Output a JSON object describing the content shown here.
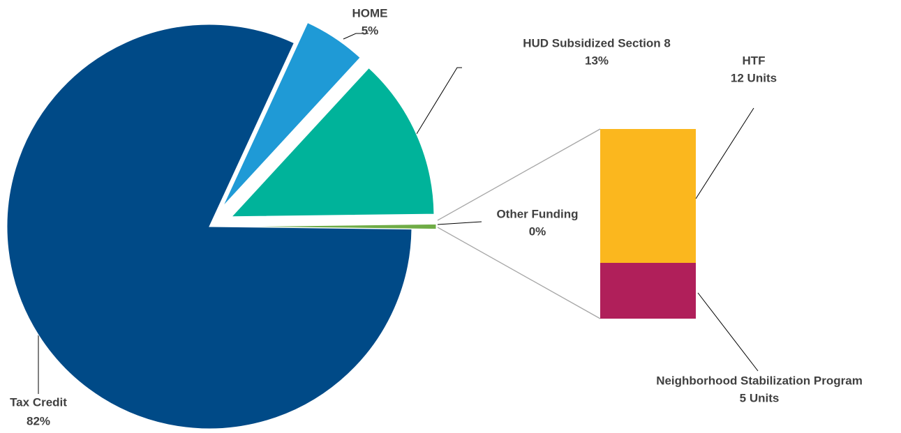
{
  "chart_data": {
    "type": "pie",
    "categories": [
      "Tax Credit",
      "HOME",
      "HUD Subsidized Section 8",
      "Other Funding"
    ],
    "values": [
      82,
      5,
      13,
      0.4
    ],
    "value_labels": [
      "82%",
      "5%",
      "13%",
      "0%"
    ],
    "colors": [
      "#004a87",
      "#1f9ad6",
      "#00b39a",
      "#6fac46"
    ],
    "breakdown": {
      "type": "bar",
      "categories": [
        "HTF",
        "Neighborhood Stabilization Program"
      ],
      "values": [
        12,
        5
      ],
      "value_labels": [
        "12 Units",
        "5 Units"
      ],
      "colors": [
        "#fbb71e",
        "#b01f5a"
      ]
    }
  }
}
